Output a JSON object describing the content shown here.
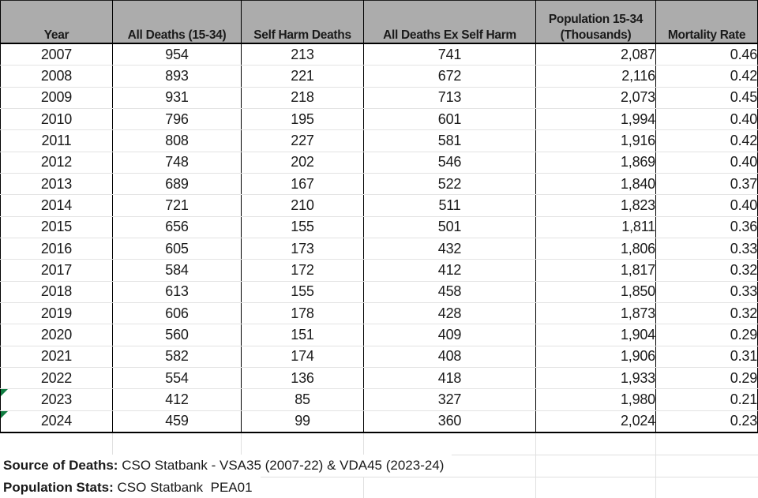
{
  "sheet": {
    "table": {
      "headers": [
        {
          "id": "year",
          "lines": [
            "Year"
          ]
        },
        {
          "id": "all-deaths",
          "lines": [
            "All Deaths (15-34)"
          ]
        },
        {
          "id": "self-harm-deaths",
          "lines": [
            "Self Harm Deaths"
          ]
        },
        {
          "id": "all-deaths-ex-self-harm",
          "lines": [
            "All Deaths Ex Self Harm"
          ]
        },
        {
          "id": "population",
          "lines": [
            "Population 15-34",
            "(Thousands)"
          ]
        },
        {
          "id": "mortality-rate",
          "lines": [
            "Mortality Rate"
          ]
        }
      ],
      "rows": [
        [
          "2007",
          "954",
          "213",
          "741",
          "2,087",
          "0.46"
        ],
        [
          "2008",
          "893",
          "221",
          "672",
          "2,116",
          "0.42"
        ],
        [
          "2009",
          "931",
          "218",
          "713",
          "2,073",
          "0.45"
        ],
        [
          "2010",
          "796",
          "195",
          "601",
          "1,994",
          "0.40"
        ],
        [
          "2011",
          "808",
          "227",
          "581",
          "1,916",
          "0.42"
        ],
        [
          "2012",
          "748",
          "202",
          "546",
          "1,869",
          "0.40"
        ],
        [
          "2013",
          "689",
          "167",
          "522",
          "1,840",
          "0.37"
        ],
        [
          "2014",
          "721",
          "210",
          "511",
          "1,823",
          "0.40"
        ],
        [
          "2015",
          "656",
          "155",
          "501",
          "1,811",
          "0.36"
        ],
        [
          "2016",
          "605",
          "173",
          "432",
          "1,806",
          "0.33"
        ],
        [
          "2017",
          "584",
          "172",
          "412",
          "1,817",
          "0.32"
        ],
        [
          "2018",
          "613",
          "155",
          "458",
          "1,850",
          "0.33"
        ],
        [
          "2019",
          "606",
          "178",
          "428",
          "1,873",
          "0.32"
        ],
        [
          "2020",
          "560",
          "151",
          "409",
          "1,904",
          "0.29"
        ],
        [
          "2021",
          "582",
          "174",
          "408",
          "1,906",
          "0.31"
        ],
        [
          "2022",
          "554",
          "136",
          "418",
          "1,933",
          "0.29"
        ],
        [
          "2023",
          "412",
          "85",
          "327",
          "1,980",
          "0.21"
        ],
        [
          "2024",
          "459",
          "99",
          "360",
          "2,024",
          "0.23"
        ]
      ],
      "error_flag_years": [
        "2023",
        "2024"
      ]
    },
    "footnotes": [
      {
        "label": "Source of Deaths:",
        "text": " CSO Statbank - VSA35 (2007-22) & VDA45 (2023-24)"
      },
      {
        "label": "Population Stats:",
        "text": " CSO Statbank  PEA01"
      }
    ],
    "colors": {
      "header_bg": "#ACACAC",
      "border": "#000000",
      "grid_light": "#E0E0E0",
      "row_line": "#E3E3E3",
      "error_green": "#107C41"
    }
  },
  "chart_data": {
    "type": "table",
    "categories": [
      "2007",
      "2008",
      "2009",
      "2010",
      "2011",
      "2012",
      "2013",
      "2014",
      "2015",
      "2016",
      "2017",
      "2018",
      "2019",
      "2020",
      "2021",
      "2022",
      "2023",
      "2024"
    ],
    "series": [
      {
        "name": "All Deaths (15-34)",
        "values": [
          954,
          893,
          931,
          796,
          808,
          748,
          689,
          721,
          656,
          605,
          584,
          613,
          606,
          560,
          582,
          554,
          412,
          459
        ]
      },
      {
        "name": "Self Harm Deaths",
        "values": [
          213,
          221,
          218,
          195,
          227,
          202,
          167,
          210,
          155,
          173,
          172,
          155,
          178,
          151,
          174,
          136,
          85,
          99
        ]
      },
      {
        "name": "All Deaths Ex Self Harm",
        "values": [
          741,
          672,
          713,
          601,
          581,
          546,
          522,
          511,
          501,
          432,
          412,
          458,
          428,
          409,
          408,
          418,
          327,
          360
        ]
      },
      {
        "name": "Population 15-34 (Thousands)",
        "values": [
          2087,
          2116,
          2073,
          1994,
          1916,
          1869,
          1840,
          1823,
          1811,
          1806,
          1817,
          1850,
          1873,
          1904,
          1906,
          1933,
          1980,
          2024
        ]
      },
      {
        "name": "Mortality Rate",
        "values": [
          0.46,
          0.42,
          0.45,
          0.4,
          0.42,
          0.4,
          0.37,
          0.4,
          0.36,
          0.33,
          0.32,
          0.33,
          0.32,
          0.29,
          0.31,
          0.29,
          0.21,
          0.23
        ]
      }
    ],
    "title": ""
  }
}
